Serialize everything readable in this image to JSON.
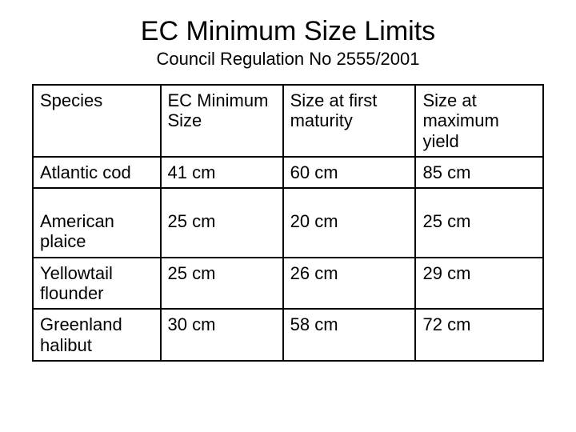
{
  "title": "EC Minimum Size Limits",
  "subtitle": "Council Regulation No 2555/2001",
  "table": {
    "columns": [
      "Species",
      "EC Minimum Size",
      "Size at first maturity",
      "Size at maximum yield"
    ],
    "rows": [
      [
        "Atlantic cod",
        "41 cm",
        "60 cm",
        "85 cm"
      ],
      [
        "American plaice",
        "25 cm",
        "20 cm",
        "25 cm"
      ],
      [
        "Yellowtail flounder",
        "25 cm",
        "26 cm",
        "29 cm"
      ],
      [
        "Greenland halibut",
        "30 cm",
        "58 cm",
        "72 cm"
      ]
    ],
    "column_widths_pct": [
      25,
      24,
      26,
      25
    ],
    "border_color": "#000000",
    "background_color": "#ffffff",
    "cell_fontsize": 22,
    "title_fontsize": 34,
    "subtitle_fontsize": 22
  }
}
